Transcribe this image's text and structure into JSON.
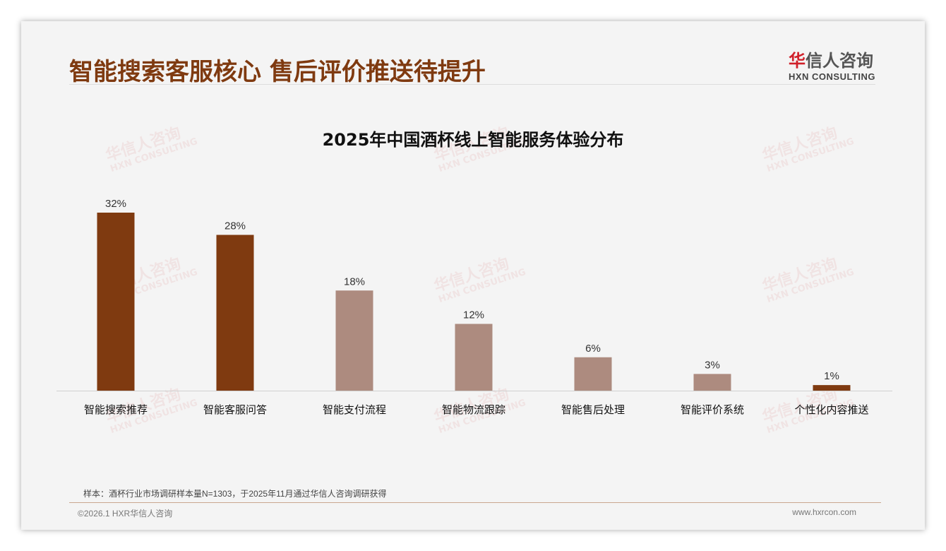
{
  "header": {
    "title": "智能搜索客服核心 售后评价推送待提升",
    "logo_cn_accent": "华",
    "logo_cn_rest": "信人咨询",
    "logo_en": "HXN CONSULTING"
  },
  "watermark": {
    "cn": "华信人咨询",
    "en": "HXN CONSULTING"
  },
  "chart_data": {
    "type": "bar",
    "title": "2025年中国酒杯线上智能服务体验分布",
    "categories": [
      "智能搜索推荐",
      "智能客服问答",
      "智能支付流程",
      "智能物流跟踪",
      "智能售后处理",
      "智能评价系统",
      "个性化内容推送"
    ],
    "values": [
      32,
      28,
      18,
      12,
      6,
      3,
      1
    ],
    "value_labels": [
      "32%",
      "28%",
      "18%",
      "12%",
      "6%",
      "3%",
      "1%"
    ],
    "highlight": [
      true,
      true,
      false,
      false,
      false,
      false,
      true
    ],
    "colors": {
      "highlight": "#7f3a10",
      "normal": "#ad8b7f"
    },
    "ylim": [
      0,
      32
    ],
    "xlabel": "",
    "ylabel": "",
    "grid": false
  },
  "footer": {
    "note": "样本：酒杯行业市场调研样本量N=1303，于2025年11月通过华信人咨询调研获得",
    "copyright": "©2026.1 HXR华信人咨询",
    "url": "www.hxrcon.com"
  }
}
